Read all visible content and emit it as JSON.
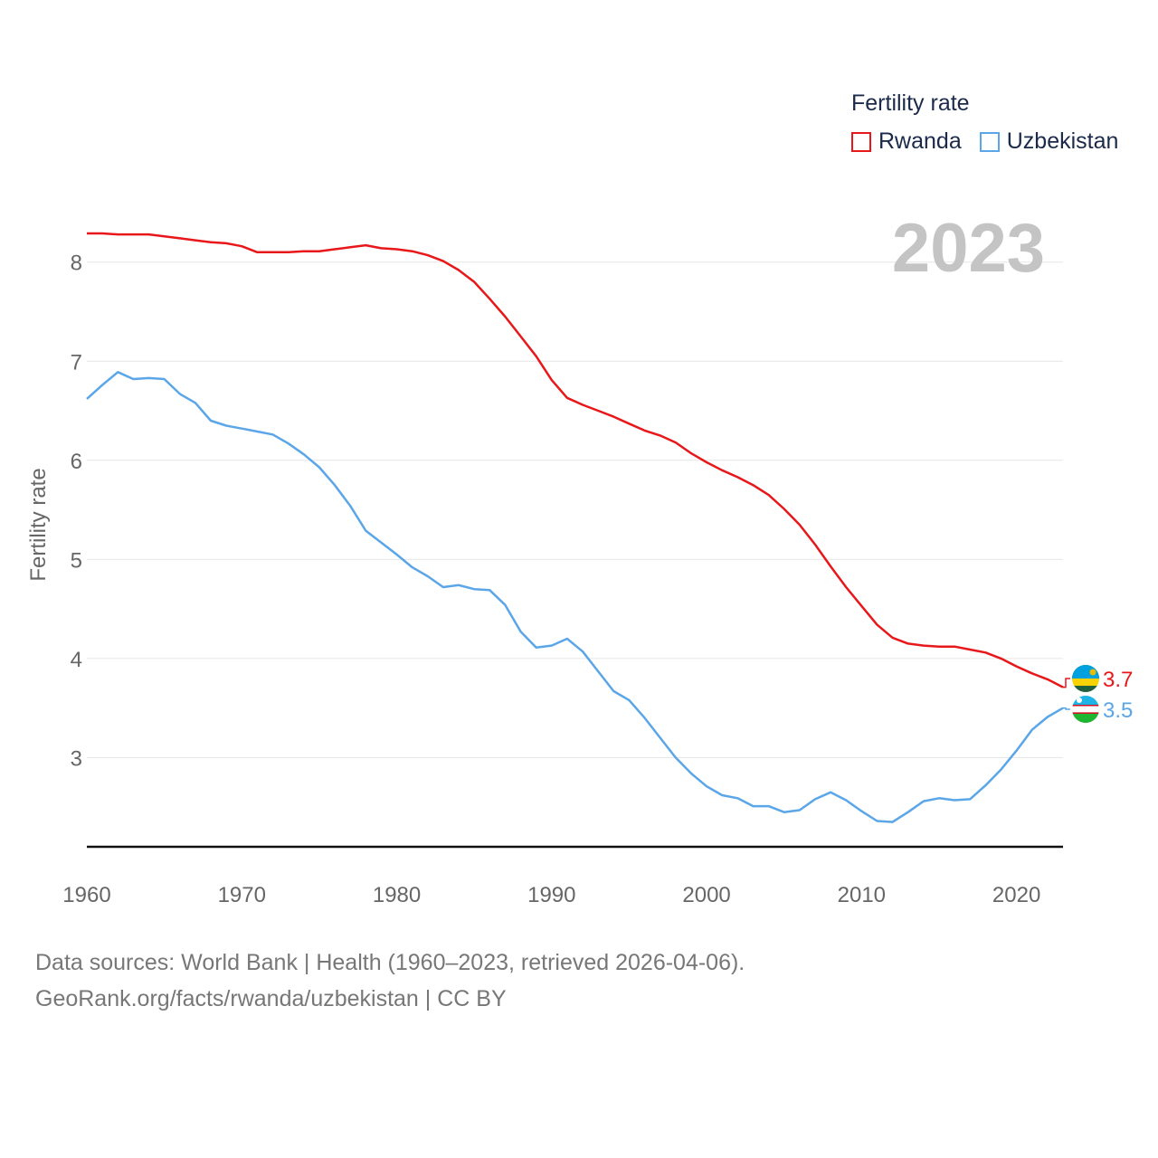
{
  "colors": {
    "rwanda": "#e8171a",
    "uzbekistan": "#5aa6e8",
    "grid": "#e6e6e6",
    "axis": "#111111",
    "tick": "#666666",
    "year": "#c4c4c4"
  },
  "legend": {
    "title": "Fertility rate",
    "items": [
      {
        "name": "Rwanda",
        "color": "#e8171a"
      },
      {
        "name": "Uzbekistan",
        "color": "#5aa6e8"
      }
    ]
  },
  "footer": {
    "line1": "Data sources: World Bank | Health (1960–2023, retrieved 2026-04-06).",
    "line2": "GeoRank.org/facts/rwanda/uzbekistan | CC BY"
  },
  "chart_data": {
    "type": "line",
    "title": "Fertility rate",
    "year_label": "2023",
    "xlabel": "",
    "ylabel": "Fertility rate",
    "xlim": [
      1960,
      2023
    ],
    "ylim": [
      2.1,
      8.6
    ],
    "xticks": [
      1960,
      1970,
      1980,
      1990,
      2000,
      2010,
      2020
    ],
    "yticks": [
      3,
      4,
      5,
      6,
      7,
      8
    ],
    "x": [
      1960,
      1961,
      1962,
      1963,
      1964,
      1965,
      1966,
      1967,
      1968,
      1969,
      1970,
      1971,
      1972,
      1973,
      1974,
      1975,
      1976,
      1977,
      1978,
      1979,
      1980,
      1981,
      1982,
      1983,
      1984,
      1985,
      1986,
      1987,
      1988,
      1989,
      1990,
      1991,
      1992,
      1993,
      1994,
      1995,
      1996,
      1997,
      1998,
      1999,
      2000,
      2001,
      2002,
      2003,
      2004,
      2005,
      2006,
      2007,
      2008,
      2009,
      2010,
      2011,
      2012,
      2013,
      2014,
      2015,
      2016,
      2017,
      2018,
      2019,
      2020,
      2021,
      2022,
      2023
    ],
    "series": [
      {
        "name": "Rwanda",
        "color": "#e8171a",
        "end_label": "3.7",
        "values": [
          8.29,
          8.29,
          8.28,
          8.28,
          8.28,
          8.26,
          8.24,
          8.22,
          8.2,
          8.19,
          8.16,
          8.1,
          8.1,
          8.1,
          8.11,
          8.11,
          8.13,
          8.15,
          8.17,
          8.14,
          8.13,
          8.11,
          8.07,
          8.01,
          7.92,
          7.8,
          7.63,
          7.45,
          7.25,
          7.05,
          6.81,
          6.63,
          6.56,
          6.5,
          6.44,
          6.37,
          6.3,
          6.25,
          6.18,
          6.07,
          5.98,
          5.9,
          5.83,
          5.75,
          5.65,
          5.51,
          5.35,
          5.15,
          4.93,
          4.72,
          4.53,
          4.34,
          4.21,
          4.15,
          4.13,
          4.12,
          4.12,
          4.09,
          4.06,
          4.0,
          3.92,
          3.85,
          3.79,
          3.71
        ]
      },
      {
        "name": "Uzbekistan",
        "color": "#5aa6e8",
        "end_label": "3.5",
        "values": [
          6.62,
          6.76,
          6.89,
          6.82,
          6.83,
          6.82,
          6.67,
          6.58,
          6.4,
          6.35,
          6.32,
          6.29,
          6.26,
          6.17,
          6.06,
          5.93,
          5.75,
          5.54,
          5.29,
          5.17,
          5.05,
          4.92,
          4.83,
          4.72,
          4.74,
          4.7,
          4.69,
          4.54,
          4.27,
          4.11,
          4.13,
          4.2,
          4.07,
          3.87,
          3.67,
          3.58,
          3.4,
          3.2,
          3.0,
          2.84,
          2.71,
          2.62,
          2.59,
          2.51,
          2.51,
          2.45,
          2.47,
          2.58,
          2.65,
          2.57,
          2.46,
          2.36,
          2.35,
          2.45,
          2.56,
          2.59,
          2.57,
          2.58,
          2.72,
          2.88,
          3.07,
          3.28,
          3.41,
          3.5
        ]
      }
    ]
  }
}
